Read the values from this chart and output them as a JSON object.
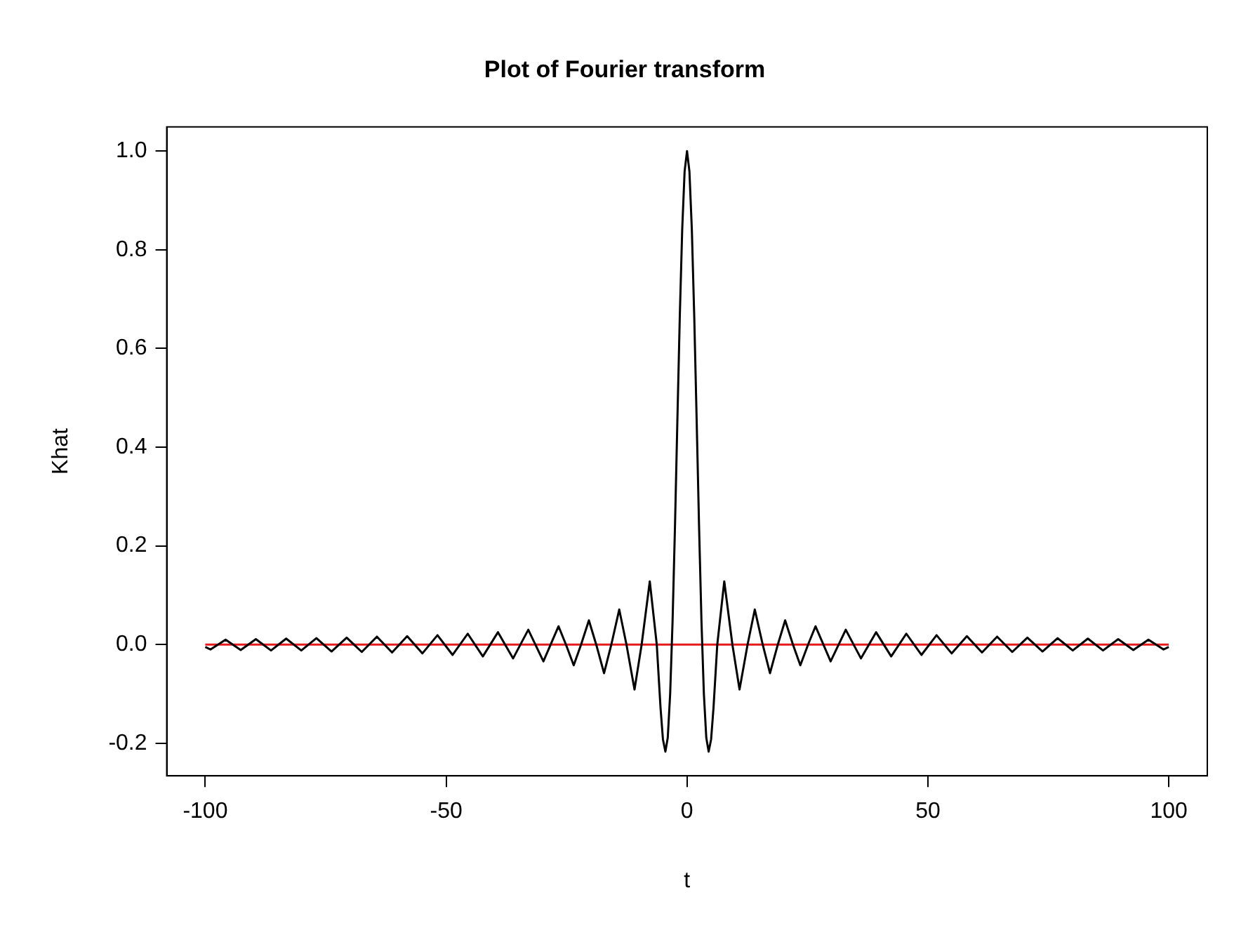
{
  "chart_data": {
    "type": "line",
    "title": "Plot of Fourier transform",
    "xlabel": "t",
    "ylabel": "Khat",
    "xlim": [
      -108,
      108
    ],
    "xticks": [
      -100,
      -50,
      0,
      50,
      100
    ],
    "ylim": [
      -0.266,
      1.049
    ],
    "yticks": [
      -0.2,
      {
        "value": 0,
        "label": "0.0"
      },
      0.2,
      0.4,
      0.6,
      0.8,
      {
        "value": 1,
        "label": "1.0"
      }
    ],
    "grid": false,
    "legend": false,
    "marker": "none",
    "line_style": "solid",
    "series": [
      {
        "color": "#000000",
        "x": [
          -100,
          -98.92,
          -95.78,
          -92.64,
          -89.5,
          -86.35,
          -83.21,
          -80.07,
          -76.93,
          -73.79,
          -70.65,
          -67.51,
          -64.37,
          -61.23,
          -58.09,
          -54.94,
          -51.8,
          -48.66,
          -45.52,
          -42.38,
          -39.24,
          -36.1,
          -32.95,
          -29.81,
          -26.67,
          -25.13,
          -23.52,
          -21.99,
          -20.37,
          -18.85,
          -17.22,
          -15.71,
          -14.07,
          -12.57,
          -10.9,
          -9.42,
          -7.73,
          -6.28,
          -5.5,
          -5,
          -4.49,
          -4,
          -3.5,
          -3,
          -2.5,
          -2,
          -1.5,
          -1,
          -0.5,
          0,
          0.5,
          1,
          1.5,
          2,
          2.5,
          3,
          3.5,
          4,
          4.49,
          5,
          5.5,
          6.28,
          7.73,
          9.42,
          10.9,
          12.57,
          14.07,
          15.71,
          17.22,
          18.85,
          20.37,
          21.99,
          23.52,
          25.13,
          26.67,
          29.81,
          32.95,
          36.1,
          39.24,
          42.38,
          45.52,
          48.66,
          51.8,
          54.94,
          58.09,
          61.23,
          64.37,
          67.51,
          70.65,
          73.79,
          76.93,
          80.07,
          83.21,
          86.35,
          89.5,
          92.64,
          95.78,
          98.92,
          100
        ],
        "values": [
          -0.005,
          -0.01,
          0.01,
          -0.011,
          0.011,
          -0.012,
          0.012,
          -0.012,
          0.013,
          -0.014,
          0.014,
          -0.015,
          0.016,
          -0.016,
          0.017,
          -0.018,
          0.019,
          -0.021,
          0.022,
          -0.024,
          0.025,
          -0.028,
          0.03,
          -0.034,
          0.037,
          0,
          -0.042,
          0,
          0.049,
          0,
          -0.058,
          0,
          0.071,
          0,
          -0.091,
          0,
          0.128,
          0,
          -0.128,
          -0.192,
          -0.217,
          -0.189,
          -0.1,
          0.047,
          0.239,
          0.455,
          0.665,
          0.841,
          0.959,
          1,
          0.959,
          0.841,
          0.665,
          0.455,
          0.239,
          0.047,
          -0.1,
          -0.189,
          -0.217,
          -0.192,
          -0.128,
          0,
          0.128,
          0,
          -0.091,
          0,
          0.071,
          0,
          -0.058,
          0,
          0.049,
          0,
          -0.042,
          0,
          0.037,
          -0.034,
          0.03,
          -0.028,
          0.025,
          -0.024,
          0.022,
          -0.021,
          0.019,
          -0.018,
          0.017,
          -0.016,
          0.016,
          -0.015,
          0.014,
          -0.014,
          0.013,
          -0.012,
          0.012,
          -0.012,
          0.011,
          -0.011,
          0.01,
          -0.01,
          -0.005
        ]
      },
      {
        "color": "#e41a1c",
        "x": [
          -100,
          100
        ],
        "values": [
          0,
          0
        ]
      }
    ]
  }
}
